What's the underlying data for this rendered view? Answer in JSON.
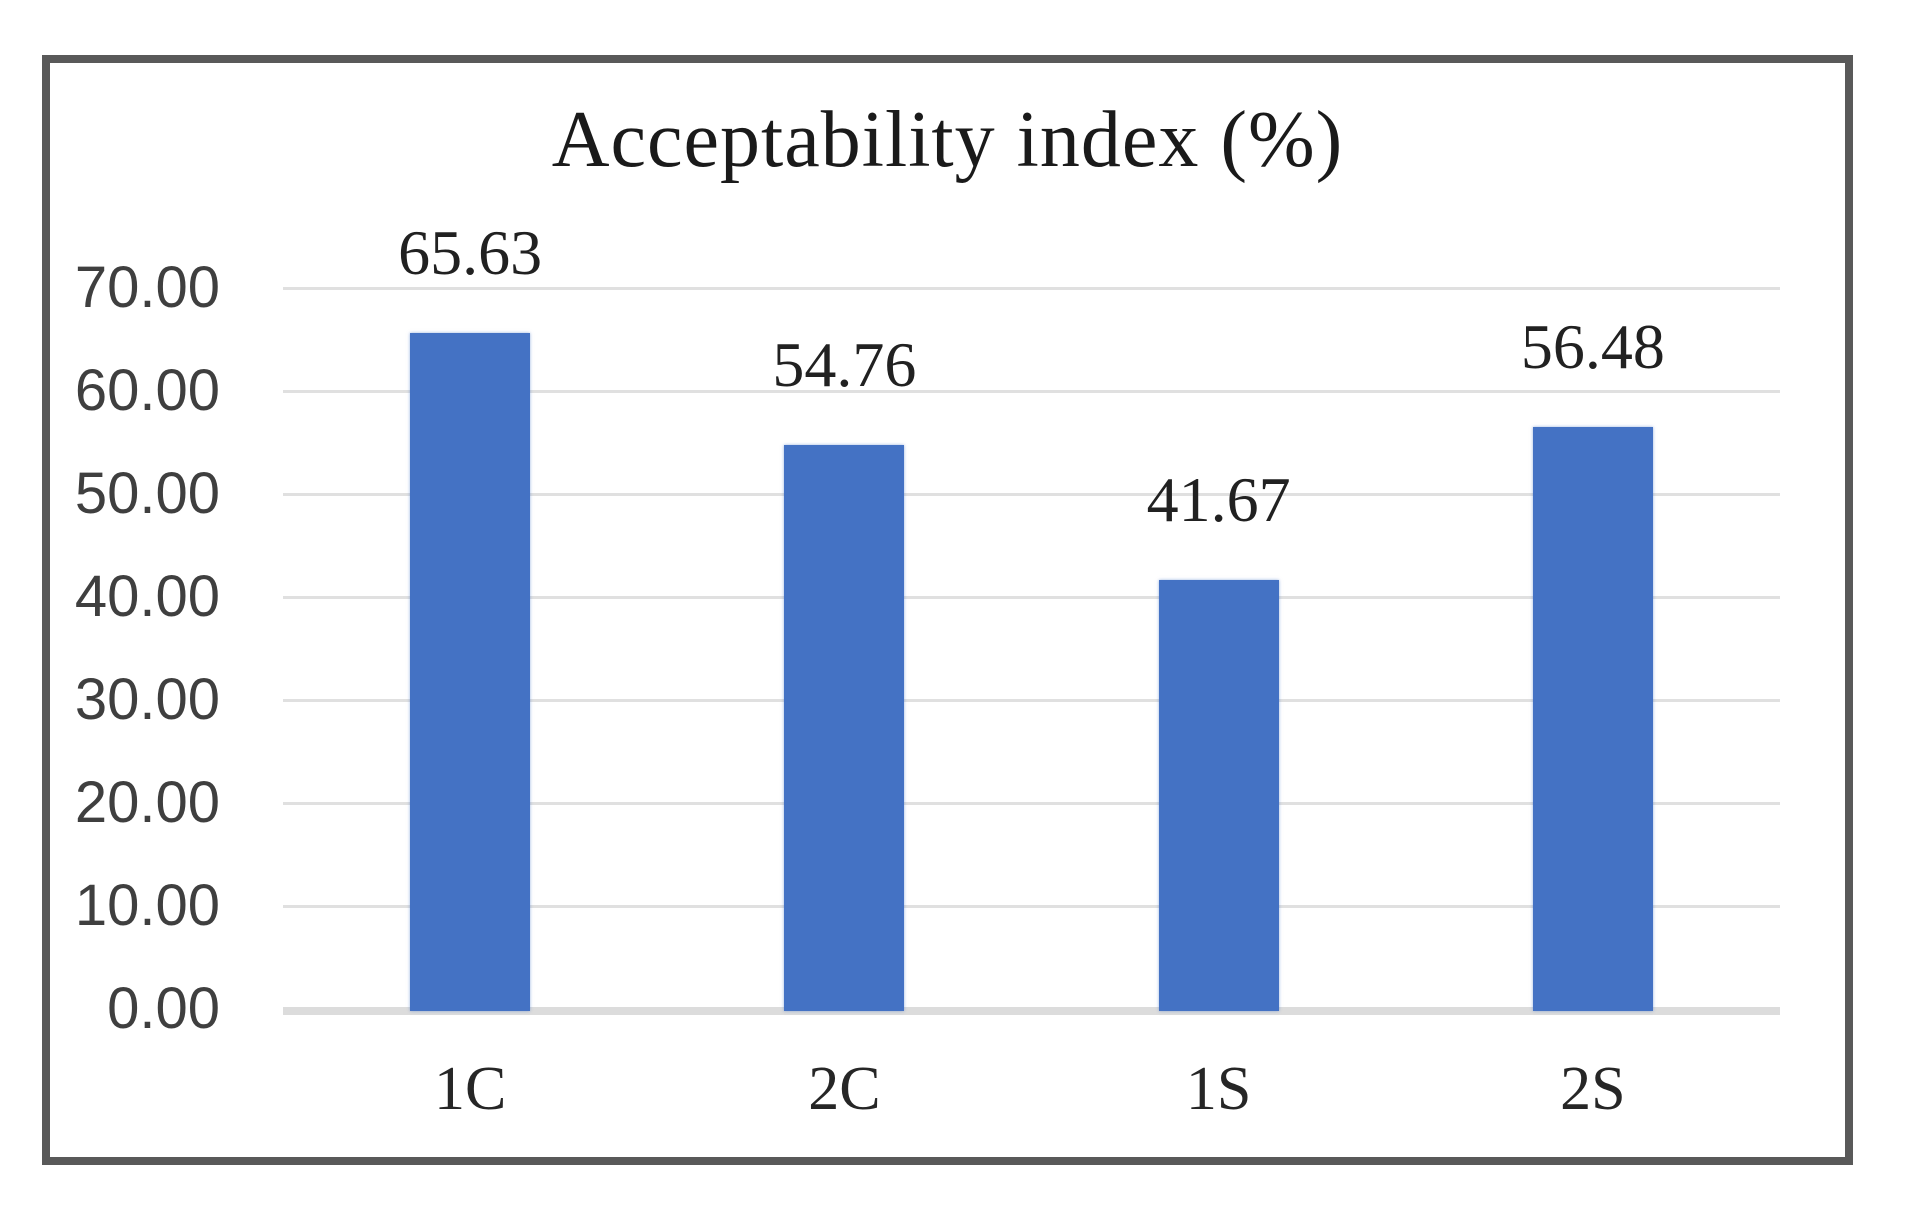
{
  "figure": {
    "background": "#ffffff",
    "frame_border_color": "#595959"
  },
  "chart_data": {
    "type": "bar",
    "title": "Acceptability index (%)",
    "categories": [
      "1C",
      "2C",
      "1S",
      "2S"
    ],
    "values": [
      65.63,
      54.76,
      41.67,
      56.48
    ],
    "data_labels": [
      "65.63",
      "54.76",
      "41.67",
      "56.48"
    ],
    "xlabel": "",
    "ylabel": "",
    "ylim": [
      0,
      70
    ],
    "y_tick_step": 10,
    "y_tick_labels": [
      "0.00",
      "10.00",
      "20.00",
      "30.00",
      "40.00",
      "50.00",
      "60.00",
      "70.00"
    ],
    "grid": true,
    "legend": "none",
    "bar_color": "#4472C4",
    "gridline_color": "#e0e0e0",
    "axis_line_color": "#dcdcdc",
    "title_color": "#1a1a1a",
    "value_label_color": "#212121",
    "tick_label_color": "#3f3f3f"
  }
}
